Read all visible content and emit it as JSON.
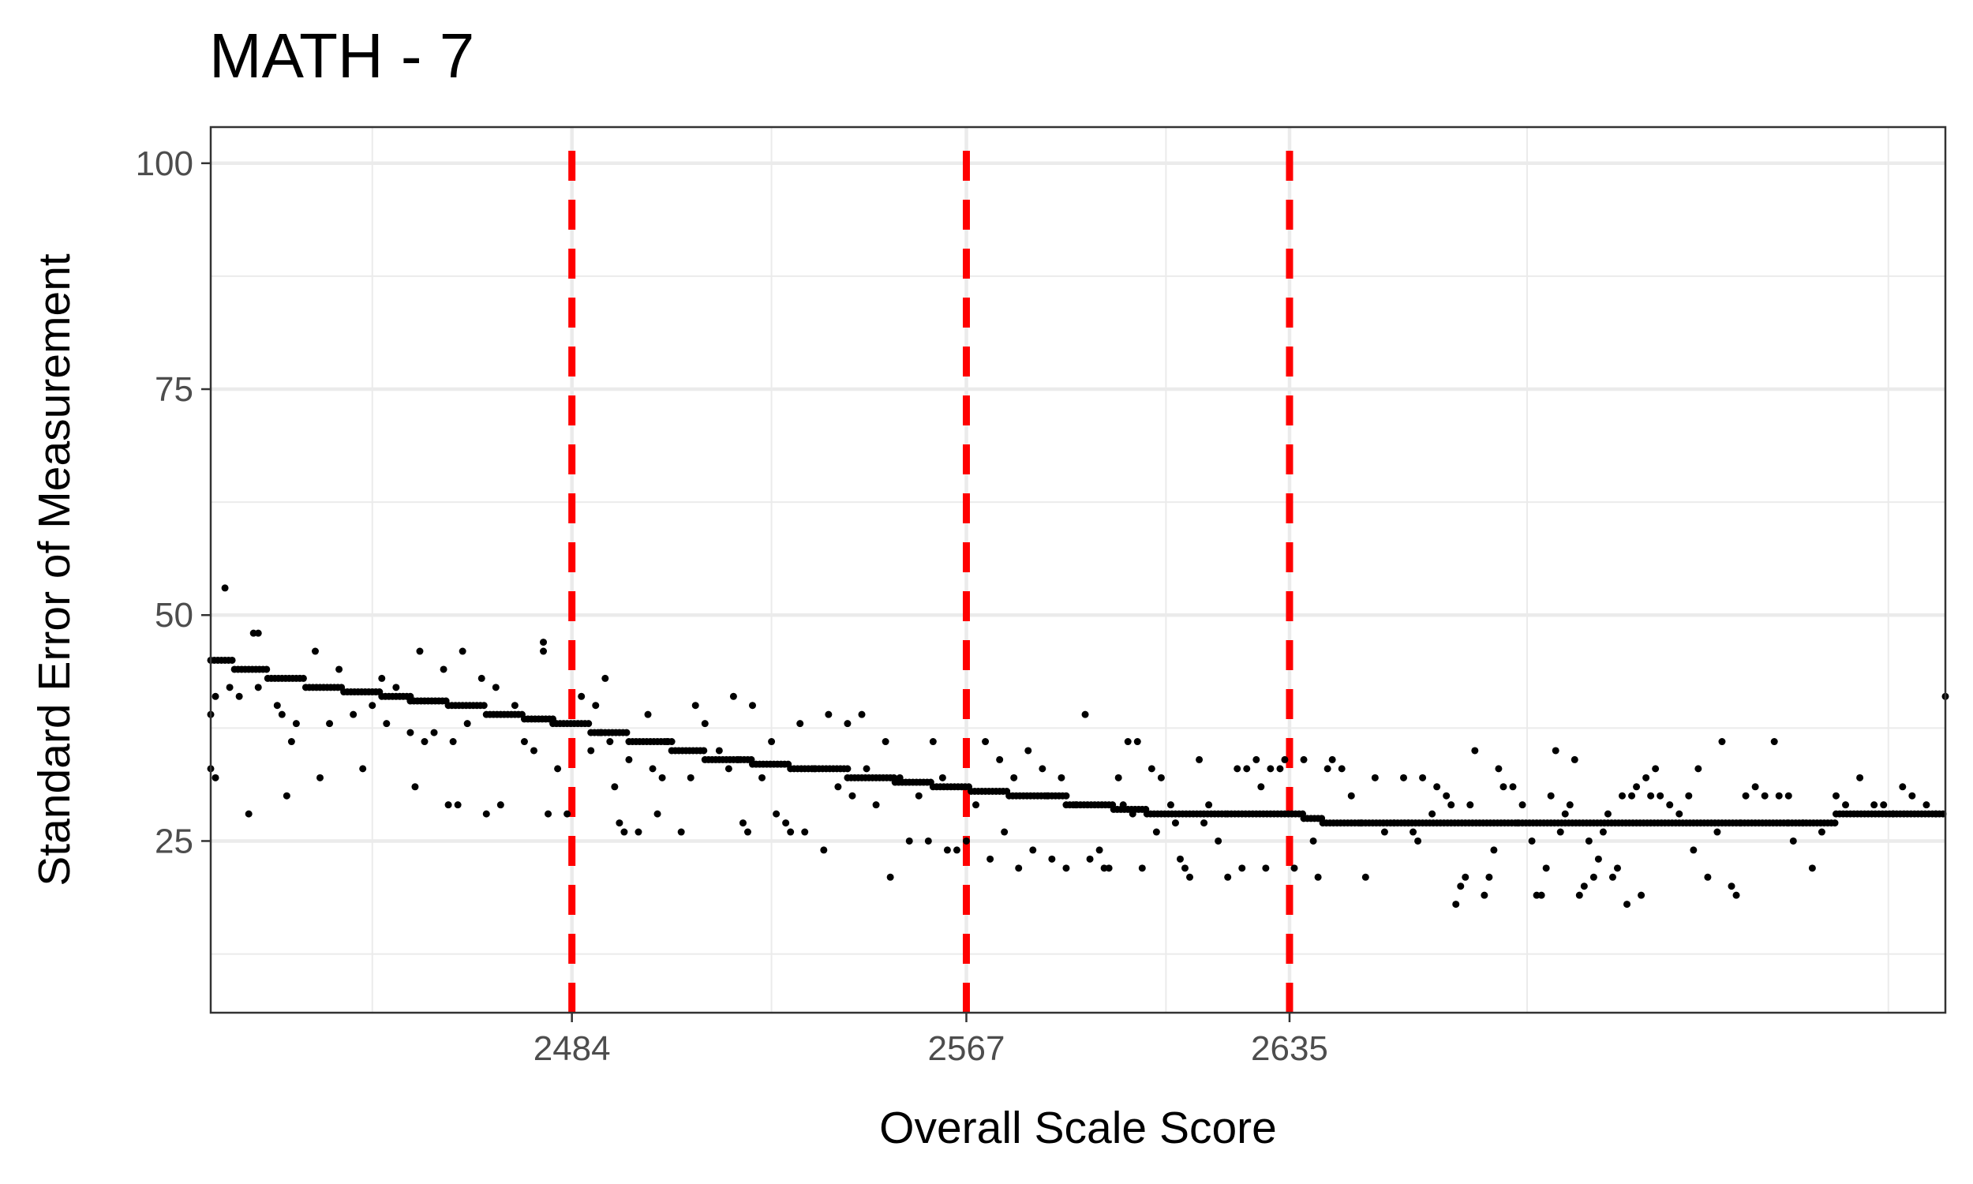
{
  "chart_data": {
    "type": "scatter",
    "title": "MATH - 7",
    "xlabel": "Overall Scale Score",
    "ylabel": "Standard Error of Measurement",
    "xlim": [
      2408,
      2773
    ],
    "ylim": [
      6,
      104
    ],
    "x_ticks": [
      2484,
      2567,
      2635
    ],
    "y_ticks": [
      25,
      50,
      75,
      100
    ],
    "x_minor_grid": [
      2442,
      2526,
      2609,
      2685,
      2761
    ],
    "y_minor_grid": [
      12.5,
      37.5,
      62.5,
      87.5
    ],
    "cut_scores": [
      2484,
      2567,
      2635
    ],
    "cut_score_color": "#ff0000",
    "point_color": "#000000",
    "grid": true,
    "steps": [
      {
        "x_start": 2408,
        "x_end": 2413,
        "y": 45
      },
      {
        "x_start": 2413,
        "x_end": 2420,
        "y": 44
      },
      {
        "x_start": 2420,
        "x_end": 2428,
        "y": 43
      },
      {
        "x_start": 2428,
        "x_end": 2436,
        "y": 42
      },
      {
        "x_start": 2436,
        "x_end": 2444,
        "y": 41.5
      },
      {
        "x_start": 2444,
        "x_end": 2450,
        "y": 41
      },
      {
        "x_start": 2450,
        "x_end": 2458,
        "y": 40.5
      },
      {
        "x_start": 2458,
        "x_end": 2466,
        "y": 40
      },
      {
        "x_start": 2466,
        "x_end": 2474,
        "y": 39
      },
      {
        "x_start": 2474,
        "x_end": 2480,
        "y": 38.5
      },
      {
        "x_start": 2480,
        "x_end": 2488,
        "y": 38
      },
      {
        "x_start": 2488,
        "x_end": 2496,
        "y": 37
      },
      {
        "x_start": 2496,
        "x_end": 2505,
        "y": 36
      },
      {
        "x_start": 2505,
        "x_end": 2512,
        "y": 35
      },
      {
        "x_start": 2512,
        "x_end": 2522,
        "y": 34
      },
      {
        "x_start": 2522,
        "x_end": 2530,
        "y": 33.5
      },
      {
        "x_start": 2530,
        "x_end": 2542,
        "y": 33
      },
      {
        "x_start": 2542,
        "x_end": 2552,
        "y": 32
      },
      {
        "x_start": 2552,
        "x_end": 2560,
        "y": 31.5
      },
      {
        "x_start": 2560,
        "x_end": 2568,
        "y": 31
      },
      {
        "x_start": 2568,
        "x_end": 2576,
        "y": 30.5
      },
      {
        "x_start": 2576,
        "x_end": 2588,
        "y": 30
      },
      {
        "x_start": 2588,
        "x_end": 2598,
        "y": 29
      },
      {
        "x_start": 2598,
        "x_end": 2605,
        "y": 28.5
      },
      {
        "x_start": 2605,
        "x_end": 2622,
        "y": 28
      },
      {
        "x_start": 2622,
        "x_end": 2638,
        "y": 28
      },
      {
        "x_start": 2638,
        "x_end": 2642,
        "y": 27.5
      },
      {
        "x_start": 2642,
        "x_end": 2660,
        "y": 27
      },
      {
        "x_start": 2660,
        "x_end": 2730,
        "y": 27
      },
      {
        "x_start": 2730,
        "x_end": 2740,
        "y": 27
      },
      {
        "x_start": 2740,
        "x_end": 2750,
        "y": 27
      },
      {
        "x_start": 2750,
        "x_end": 2762,
        "y": 28
      },
      {
        "x_start": 2762,
        "x_end": 2773,
        "y": 28
      }
    ],
    "scatter_points": [
      [
        2408,
        33
      ],
      [
        2409,
        32
      ],
      [
        2409,
        41
      ],
      [
        2408,
        39
      ],
      [
        2411,
        53
      ],
      [
        2412,
        42
      ],
      [
        2416,
        28
      ],
      [
        2417,
        48
      ],
      [
        2418,
        48
      ],
      [
        2414,
        41
      ],
      [
        2418,
        42
      ],
      [
        2422,
        40
      ],
      [
        2423,
        39
      ],
      [
        2424,
        30
      ],
      [
        2426,
        38
      ],
      [
        2425,
        36
      ],
      [
        2430,
        46
      ],
      [
        2431,
        32
      ],
      [
        2433,
        38
      ],
      [
        2435,
        44
      ],
      [
        2438,
        39
      ],
      [
        2440,
        33
      ],
      [
        2442,
        40
      ],
      [
        2444,
        43
      ],
      [
        2445,
        38
      ],
      [
        2447,
        42
      ],
      [
        2450,
        37
      ],
      [
        2451,
        31
      ],
      [
        2452,
        46
      ],
      [
        2453,
        36
      ],
      [
        2455,
        37
      ],
      [
        2457,
        44
      ],
      [
        2458,
        29
      ],
      [
        2459,
        36
      ],
      [
        2460,
        29
      ],
      [
        2461,
        46
      ],
      [
        2462,
        38
      ],
      [
        2465,
        43
      ],
      [
        2466,
        28
      ],
      [
        2468,
        42
      ],
      [
        2469,
        29
      ],
      [
        2472,
        40
      ],
      [
        2474,
        36
      ],
      [
        2476,
        35
      ],
      [
        2478,
        47
      ],
      [
        2478,
        46
      ],
      [
        2479,
        28
      ],
      [
        2481,
        33
      ],
      [
        2483,
        28
      ],
      [
        2486,
        41
      ],
      [
        2488,
        35
      ],
      [
        2489,
        40
      ],
      [
        2490,
        37
      ],
      [
        2491,
        43
      ],
      [
        2492,
        36
      ],
      [
        2493,
        31
      ],
      [
        2494,
        27
      ],
      [
        2495,
        26
      ],
      [
        2496,
        34
      ],
      [
        2498,
        26
      ],
      [
        2500,
        39
      ],
      [
        2501,
        33
      ],
      [
        2502,
        28
      ],
      [
        2503,
        32
      ],
      [
        2504,
        36
      ],
      [
        2507,
        26
      ],
      [
        2509,
        32
      ],
      [
        2510,
        40
      ],
      [
        2512,
        38
      ],
      [
        2515,
        35
      ],
      [
        2517,
        33
      ],
      [
        2518,
        41
      ],
      [
        2519,
        34
      ],
      [
        2520,
        27
      ],
      [
        2521,
        26
      ],
      [
        2522,
        40
      ],
      [
        2524,
        32
      ],
      [
        2526,
        36
      ],
      [
        2527,
        28
      ],
      [
        2529,
        27
      ],
      [
        2530,
        26
      ],
      [
        2532,
        38
      ],
      [
        2533,
        26
      ],
      [
        2535,
        33
      ],
      [
        2537,
        24
      ],
      [
        2538,
        39
      ],
      [
        2540,
        31
      ],
      [
        2542,
        38
      ],
      [
        2543,
        30
      ],
      [
        2545,
        39
      ],
      [
        2546,
        33
      ],
      [
        2548,
        29
      ],
      [
        2550,
        36
      ],
      [
        2551,
        21
      ],
      [
        2553,
        32
      ],
      [
        2555,
        25
      ],
      [
        2557,
        30
      ],
      [
        2559,
        25
      ],
      [
        2560,
        36
      ],
      [
        2562,
        32
      ],
      [
        2563,
        24
      ],
      [
        2565,
        24
      ],
      [
        2567,
        25
      ],
      [
        2569,
        29
      ],
      [
        2571,
        36
      ],
      [
        2572,
        23
      ],
      [
        2574,
        34
      ],
      [
        2575,
        26
      ],
      [
        2577,
        32
      ],
      [
        2578,
        22
      ],
      [
        2580,
        35
      ],
      [
        2581,
        24
      ],
      [
        2583,
        33
      ],
      [
        2584,
        30
      ],
      [
        2585,
        23
      ],
      [
        2587,
        32
      ],
      [
        2588,
        22
      ],
      [
        2590,
        29
      ],
      [
        2592,
        39
      ],
      [
        2593,
        23
      ],
      [
        2595,
        24
      ],
      [
        2596,
        22
      ],
      [
        2597,
        22
      ],
      [
        2599,
        32
      ],
      [
        2600,
        29
      ],
      [
        2601,
        36
      ],
      [
        2602,
        28
      ],
      [
        2603,
        36
      ],
      [
        2604,
        22
      ],
      [
        2606,
        33
      ],
      [
        2607,
        26
      ],
      [
        2608,
        32
      ],
      [
        2610,
        29
      ],
      [
        2611,
        27
      ],
      [
        2612,
        23
      ],
      [
        2613,
        22
      ],
      [
        2614,
        21
      ],
      [
        2616,
        34
      ],
      [
        2617,
        27
      ],
      [
        2618,
        29
      ],
      [
        2620,
        25
      ],
      [
        2622,
        21
      ],
      [
        2624,
        33
      ],
      [
        2625,
        22
      ],
      [
        2626,
        33
      ],
      [
        2628,
        34
      ],
      [
        2629,
        31
      ],
      [
        2630,
        22
      ],
      [
        2631,
        33
      ],
      [
        2633,
        33
      ],
      [
        2634,
        34
      ],
      [
        2636,
        22
      ],
      [
        2638,
        34
      ],
      [
        2640,
        25
      ],
      [
        2641,
        21
      ],
      [
        2643,
        33
      ],
      [
        2644,
        34
      ],
      [
        2646,
        33
      ],
      [
        2648,
        30
      ],
      [
        2650,
        27
      ],
      [
        2651,
        21
      ],
      [
        2653,
        32
      ],
      [
        2655,
        26
      ],
      [
        2657,
        27
      ],
      [
        2659,
        32
      ],
      [
        2661,
        26
      ],
      [
        2662,
        25
      ],
      [
        2663,
        32
      ],
      [
        2665,
        28
      ],
      [
        2666,
        31
      ],
      [
        2668,
        30
      ],
      [
        2669,
        29
      ],
      [
        2670,
        18
      ],
      [
        2671,
        20
      ],
      [
        2672,
        21
      ],
      [
        2673,
        29
      ],
      [
        2674,
        35
      ],
      [
        2676,
        19
      ],
      [
        2677,
        21
      ],
      [
        2678,
        24
      ],
      [
        2679,
        33
      ],
      [
        2680,
        31
      ],
      [
        2682,
        31
      ],
      [
        2683,
        27
      ],
      [
        2684,
        29
      ],
      [
        2686,
        25
      ],
      [
        2687,
        19
      ],
      [
        2688,
        19
      ],
      [
        2689,
        22
      ],
      [
        2690,
        30
      ],
      [
        2691,
        35
      ],
      [
        2692,
        26
      ],
      [
        2693,
        28
      ],
      [
        2694,
        29
      ],
      [
        2695,
        34
      ],
      [
        2696,
        19
      ],
      [
        2697,
        20
      ],
      [
        2698,
        25
      ],
      [
        2699,
        21
      ],
      [
        2700,
        23
      ],
      [
        2701,
        26
      ],
      [
        2702,
        28
      ],
      [
        2703,
        21
      ],
      [
        2704,
        22
      ],
      [
        2705,
        30
      ],
      [
        2706,
        18
      ],
      [
        2707,
        30
      ],
      [
        2708,
        31
      ],
      [
        2709,
        19
      ],
      [
        2710,
        32
      ],
      [
        2711,
        30
      ],
      [
        2712,
        33
      ],
      [
        2713,
        30
      ],
      [
        2715,
        29
      ],
      [
        2717,
        28
      ],
      [
        2719,
        30
      ],
      [
        2720,
        24
      ],
      [
        2721,
        33
      ],
      [
        2723,
        21
      ],
      [
        2725,
        26
      ],
      [
        2726,
        36
      ],
      [
        2728,
        20
      ],
      [
        2729,
        19
      ],
      [
        2731,
        30
      ],
      [
        2733,
        31
      ],
      [
        2735,
        30
      ],
      [
        2737,
        36
      ],
      [
        2738,
        30
      ],
      [
        2740,
        30
      ],
      [
        2741,
        25
      ],
      [
        2743,
        27
      ],
      [
        2745,
        22
      ],
      [
        2747,
        26
      ],
      [
        2750,
        30
      ],
      [
        2752,
        29
      ],
      [
        2755,
        32
      ],
      [
        2758,
        29
      ],
      [
        2760,
        29
      ],
      [
        2762,
        28
      ],
      [
        2764,
        31
      ],
      [
        2766,
        30
      ],
      [
        2769,
        29
      ],
      [
        2771,
        28
      ],
      [
        2773,
        41
      ]
    ]
  }
}
